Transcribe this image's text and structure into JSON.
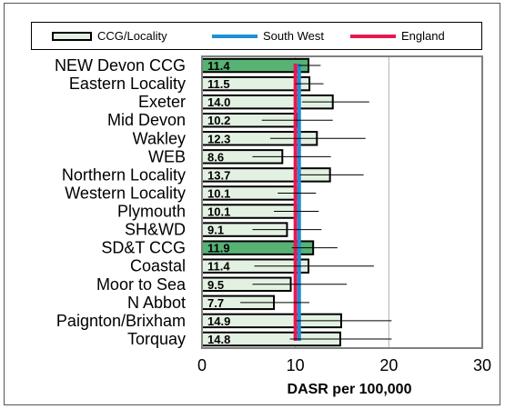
{
  "chart_data": {
    "type": "bar",
    "orientation": "horizontal",
    "categories": [
      "NEW Devon CCG",
      "Eastern Locality",
      "Exeter",
      "Mid Devon",
      "Wakley",
      "WEB",
      "Northern Locality",
      "Western Locality",
      "Plymouth",
      "SH&WD",
      "SD&T CCG",
      "Coastal",
      "Moor to Sea",
      "N Abbot",
      "Paignton/Brixham",
      "Torquay"
    ],
    "values": [
      11.4,
      11.5,
      14.0,
      10.2,
      12.3,
      8.6,
      13.7,
      10.1,
      10.1,
      9.1,
      11.9,
      11.4,
      9.5,
      7.7,
      14.9,
      14.8
    ],
    "value_labels": [
      "11.4",
      "11.5",
      "14.0",
      "10.2",
      "12.3",
      "8.6",
      "13.7",
      "10.1",
      "10.1",
      "9.1",
      "11.9",
      "11.4",
      "9.5",
      "7.7",
      "14.9",
      "14.8"
    ],
    "highlighted": [
      true,
      false,
      false,
      false,
      false,
      false,
      false,
      false,
      false,
      false,
      true,
      false,
      false,
      false,
      false,
      false
    ],
    "error_low": [
      10.3,
      10.0,
      10.7,
      6.4,
      7.3,
      5.4,
      10.5,
      8.1,
      7.7,
      5.4,
      9.6,
      5.6,
      5.4,
      4.1,
      10.1,
      9.4
    ],
    "error_high": [
      12.7,
      13.0,
      17.9,
      14.0,
      17.5,
      13.8,
      17.3,
      12.2,
      12.5,
      12.8,
      14.5,
      18.4,
      15.5,
      11.5,
      20.3,
      20.3
    ],
    "reference_lines": [
      {
        "name": "South West",
        "value": 10.4,
        "color": "#1f8fd6"
      },
      {
        "name": "England",
        "value": 10.0,
        "color": "#e8174f"
      }
    ],
    "legend": [
      {
        "key": "bar",
        "label": "CCG/Locality"
      },
      {
        "key": "sw",
        "label": "South West"
      },
      {
        "key": "eng",
        "label": "England"
      }
    ],
    "legend_position": "top",
    "xlabel": "DASR per 100,000",
    "xlim": [
      0,
      30
    ],
    "x_ticks": [
      "0",
      "10",
      "20",
      "30"
    ],
    "grid": true,
    "colors": {
      "bar_fill": "#e3f1e3",
      "bar_highlight": "#57b274",
      "bar_border": "#000000",
      "grid": "#b0b0b0",
      "plot_border": "#808080"
    }
  }
}
